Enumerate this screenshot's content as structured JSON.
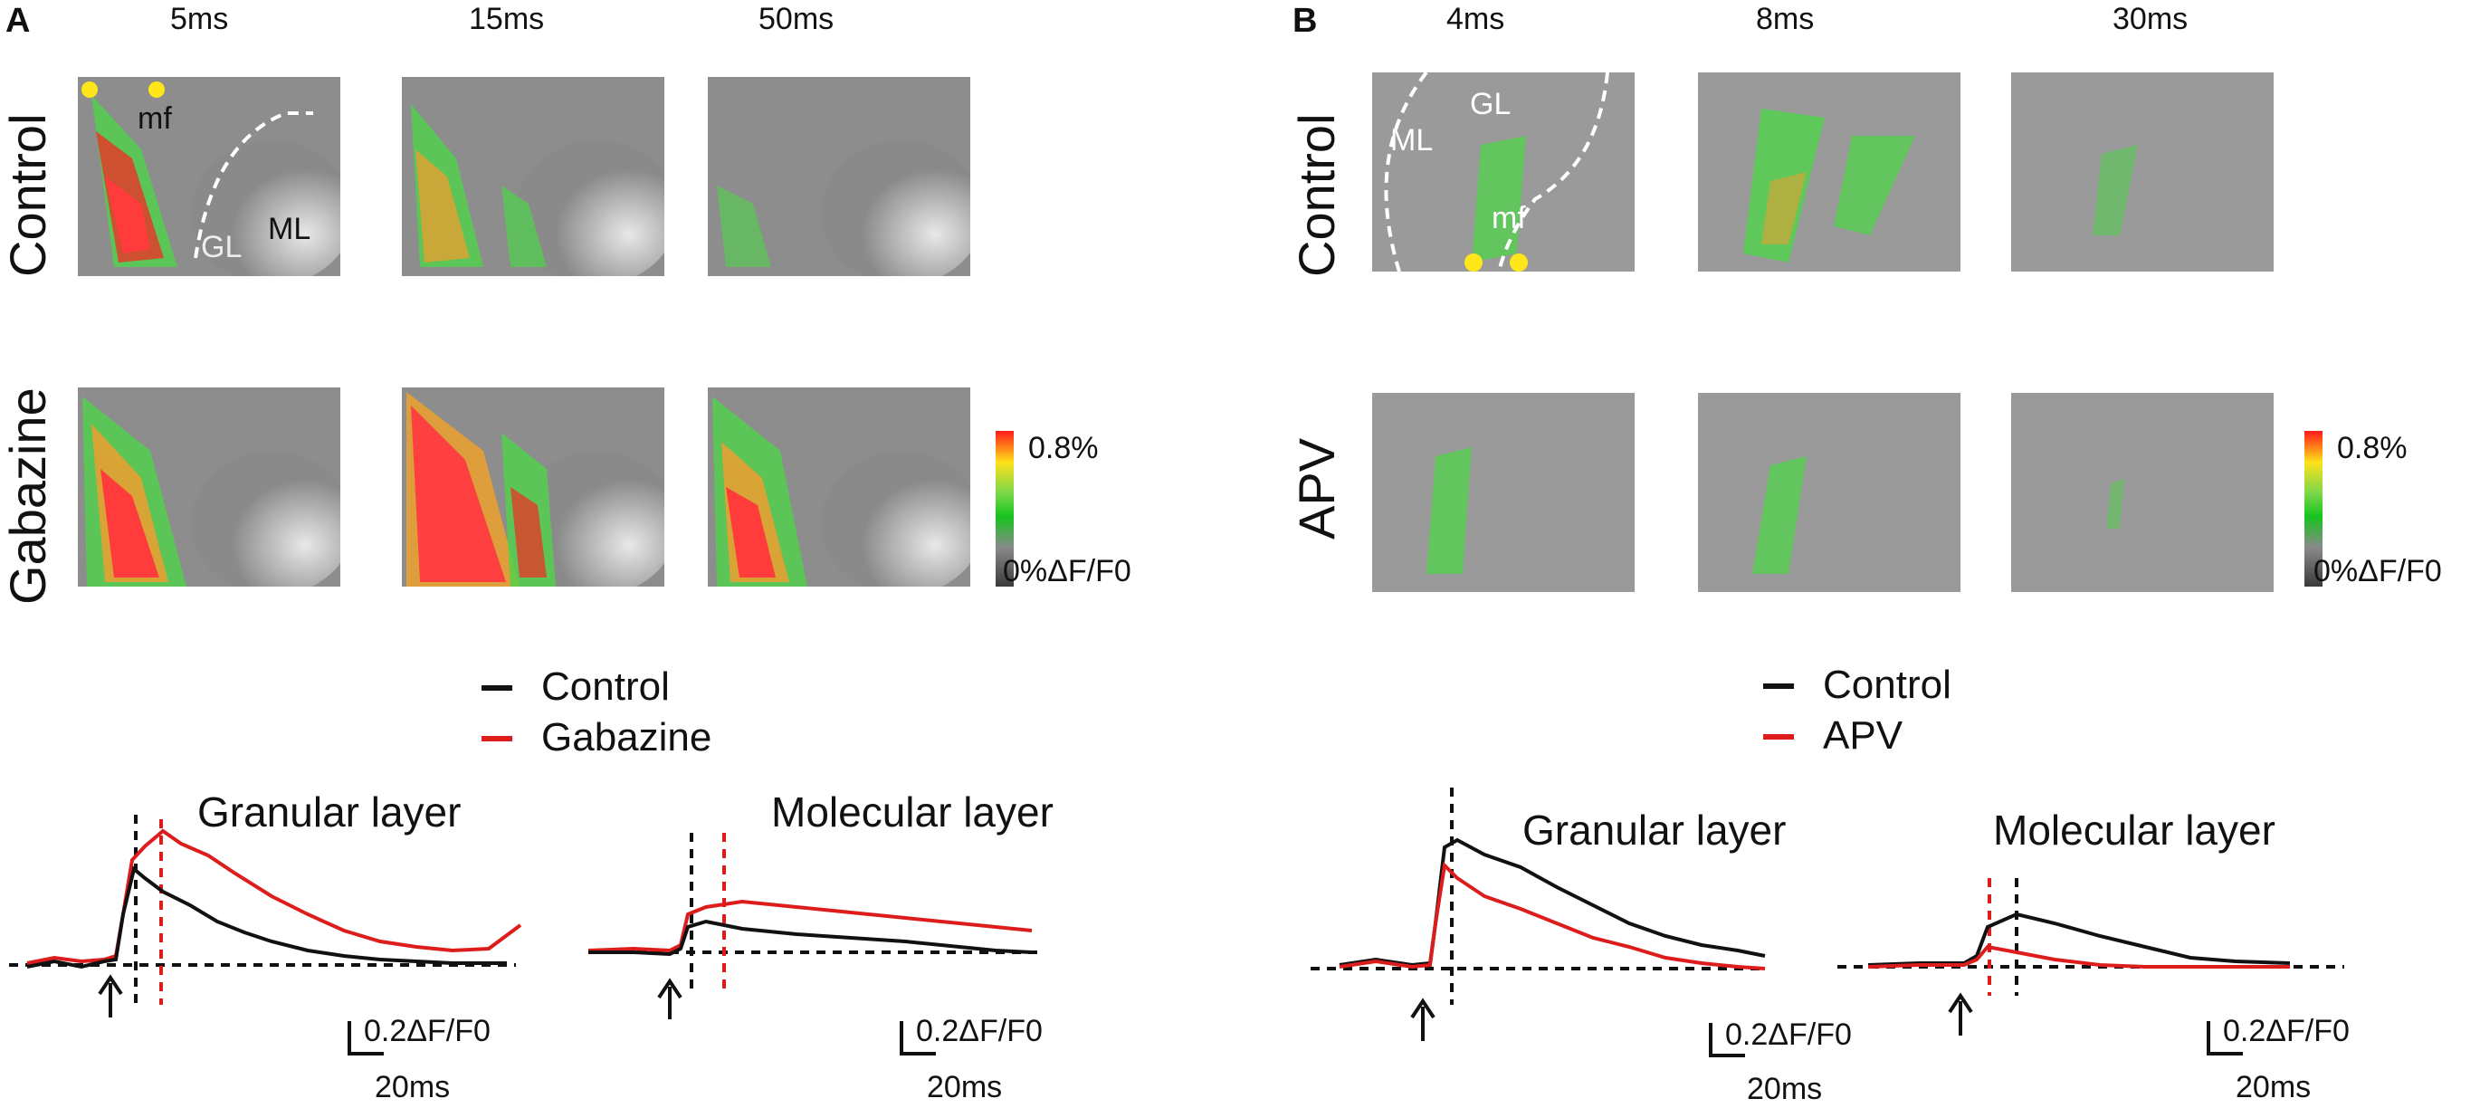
{
  "panel_a": {
    "letter": "A",
    "times": [
      "5ms",
      "15ms",
      "50ms"
    ],
    "rows": [
      "Control",
      "Gabazine"
    ],
    "overlay_labels": {
      "mf": "mf",
      "gl": "GL",
      "ml": "ML"
    },
    "colorbar": {
      "max": "0.8%",
      "min": "0%ΔF/F0"
    },
    "legend": {
      "control": "Control",
      "drug": "Gabazine"
    },
    "plot_titles": {
      "granular": "Granular layer",
      "molecular": "Molecular layer"
    },
    "scalebars": {
      "y": "0.2ΔF/F0",
      "x": "20ms"
    }
  },
  "panel_b": {
    "letter": "B",
    "times": [
      "4ms",
      "8ms",
      "30ms"
    ],
    "rows": [
      "Control",
      "APV"
    ],
    "overlay_labels": {
      "mf": "mf",
      "gl": "GL",
      "ml": "ML"
    },
    "colorbar": {
      "max": "0.8%",
      "min": "0%ΔF/F0"
    },
    "legend": {
      "control": "Control",
      "drug": "APV"
    },
    "plot_titles": {
      "granular": "Granular layer",
      "molecular": "Molecular layer"
    },
    "scalebars": {
      "y": "0.2ΔF/F0",
      "x": "20ms"
    }
  },
  "colors": {
    "control": "#111111",
    "drug": "#dd1c1c",
    "marker": "#ffe61a"
  }
}
